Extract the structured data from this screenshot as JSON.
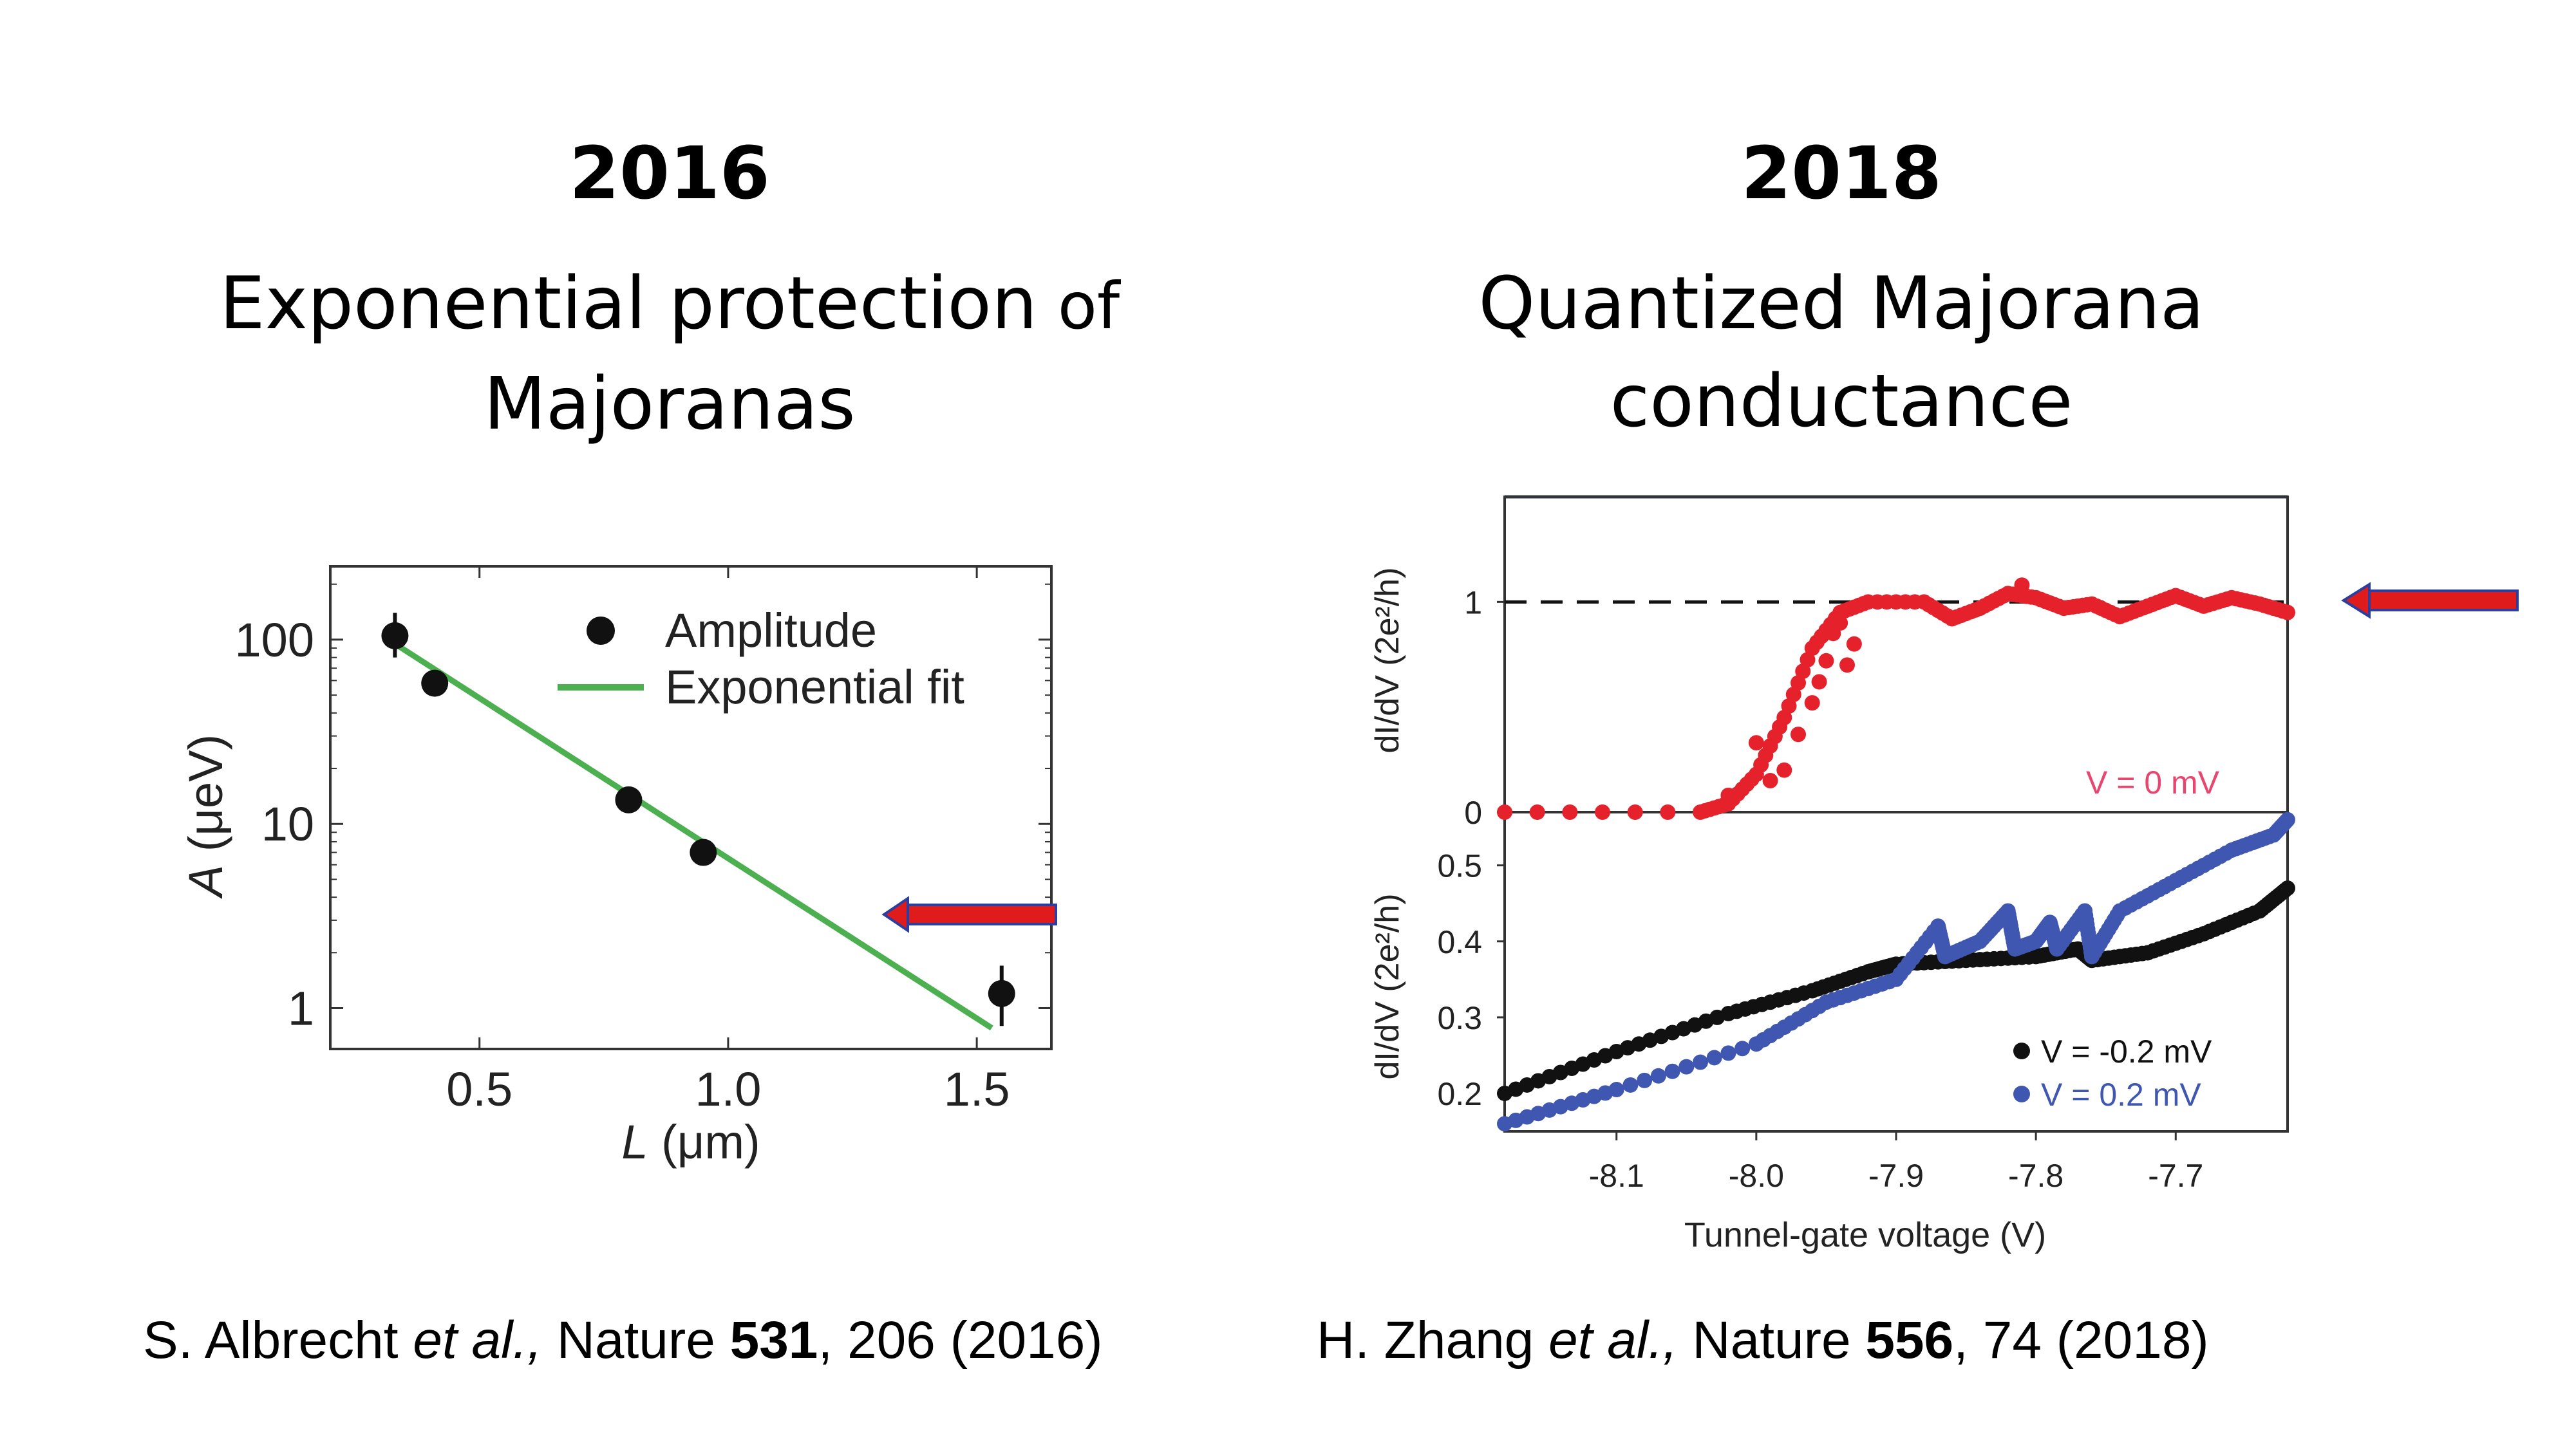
{
  "left": {
    "year": "2016",
    "subtitle_line1_main": "Exponential protection",
    "subtitle_line1_small": " of",
    "subtitle_line2": "Majoranas",
    "citation": {
      "authors": "S. Albrecht ",
      "etal": "et al.,",
      "journal": " Nature ",
      "volume": "531",
      "rest": ", 206 (2016)"
    }
  },
  "right": {
    "year": "2018",
    "subtitle_line1": "Quantized Majorana",
    "subtitle_line2": "conductance",
    "citation": {
      "authors": "H. Zhang ",
      "etal": "et al.,",
      "journal": " Nature ",
      "volume": "556",
      "rest": ", 74 (2018)"
    }
  },
  "colors": {
    "fit_line": "#4caf50",
    "marker_black": "#111111",
    "marker_red": "#e5222b",
    "marker_blue": "#3f57b0",
    "arrow_fill": "#e01b1b",
    "arrow_outline": "#2a3fa0",
    "v0_label": "#e8466e"
  },
  "chart_data": [
    {
      "type": "scatter",
      "xlabel_italic": "L",
      "xlabel_unit": "(μm)",
      "ylabel_italic": "A",
      "ylabel_unit": "(μeV)",
      "yscale": "log",
      "xlim": [
        0.2,
        1.65
      ],
      "ylim": [
        0.6,
        250
      ],
      "xticks": [
        "0.5",
        "1.0",
        "1.5"
      ],
      "yticks": [
        "1",
        "10",
        "100"
      ],
      "legend_position": "top-right",
      "series": [
        {
          "name": "Amplitude",
          "marker": "dot",
          "points": [
            {
              "x": 0.33,
              "y": 105,
              "err_low": 80,
              "err_high": 140
            },
            {
              "x": 0.41,
              "y": 58
            },
            {
              "x": 0.8,
              "y": 13.5
            },
            {
              "x": 0.95,
              "y": 7
            },
            {
              "x": 1.55,
              "y": 1.2,
              "err_low": 0.8,
              "err_high": 1.7
            }
          ]
        },
        {
          "name": "Exponential fit",
          "marker": "line",
          "points": [
            {
              "x": 0.33,
              "y": 95
            },
            {
              "x": 1.53,
              "y": 0.78
            }
          ]
        }
      ],
      "annotation": "arrow pointing at fit line near A ≈ 2.6"
    },
    {
      "type": "scatter",
      "panel": "top",
      "ylabel": "dI/dV (2e²/h)",
      "yticks": [
        "0",
        "1"
      ],
      "ylim": [
        0,
        1.5
      ],
      "xlim": [
        -8.18,
        -7.62
      ],
      "reference_line": {
        "y": 1,
        "style": "dashed"
      },
      "series": [
        {
          "name": "V = 0 mV",
          "trace": [
            [
              -8.18,
              0.0
            ],
            [
              -8.04,
              0.0
            ],
            [
              -8.02,
              0.04
            ],
            [
              -8.0,
              0.18
            ],
            [
              -7.98,
              0.45
            ],
            [
              -7.96,
              0.78
            ],
            [
              -7.94,
              0.95
            ],
            [
              -7.92,
              1.0
            ],
            [
              -7.88,
              1.0
            ],
            [
              -7.86,
              0.92
            ],
            [
              -7.84,
              0.97
            ],
            [
              -7.82,
              1.04
            ],
            [
              -7.8,
              1.02
            ],
            [
              -7.78,
              0.97
            ],
            [
              -7.76,
              0.99
            ],
            [
              -7.74,
              0.93
            ],
            [
              -7.72,
              0.98
            ],
            [
              -7.7,
              1.03
            ],
            [
              -7.68,
              0.98
            ],
            [
              -7.66,
              1.02
            ],
            [
              -7.64,
              0.99
            ],
            [
              -7.62,
              0.95
            ]
          ],
          "scatter": [
            [
              -8.02,
              0.08
            ],
            [
              -8.0,
              0.33
            ],
            [
              -7.99,
              0.15
            ],
            [
              -7.98,
              0.2
            ],
            [
              -7.97,
              0.37
            ],
            [
              -7.96,
              0.52
            ],
            [
              -7.955,
              0.62
            ],
            [
              -7.95,
              0.72
            ],
            [
              -7.945,
              0.85
            ],
            [
              -7.94,
              0.9
            ],
            [
              -7.935,
              0.7
            ],
            [
              -7.93,
              0.8
            ],
            [
              -7.81,
              1.08
            ]
          ]
        }
      ]
    },
    {
      "type": "scatter",
      "panel": "bottom",
      "ylabel": "dI/dV (2e²/h)",
      "xlabel": "Tunnel-gate voltage (V)",
      "xlim": [
        -8.18,
        -7.62
      ],
      "ylim": [
        0.15,
        0.57
      ],
      "xticks": [
        "-8.1",
        "-8.0",
        "-7.9",
        "-7.8",
        "-7.7"
      ],
      "yticks": [
        "0.2",
        "0.3",
        "0.4",
        "0.5"
      ],
      "legend_position": "bottom-right",
      "series": [
        {
          "name": "V = -0.2 mV",
          "trace": [
            [
              -8.18,
              0.2
            ],
            [
              -8.1,
              0.255
            ],
            [
              -8.02,
              0.305
            ],
            [
              -7.96,
              0.335
            ],
            [
              -7.92,
              0.36
            ],
            [
              -7.9,
              0.37
            ],
            [
              -7.85,
              0.375
            ],
            [
              -7.8,
              0.38
            ],
            [
              -7.77,
              0.39
            ],
            [
              -7.76,
              0.375
            ],
            [
              -7.72,
              0.385
            ],
            [
              -7.68,
              0.41
            ],
            [
              -7.64,
              0.44
            ],
            [
              -7.62,
              0.47
            ]
          ]
        },
        {
          "name": "V = 0.2 mV",
          "trace": [
            [
              -8.18,
              0.16
            ],
            [
              -8.1,
              0.205
            ],
            [
              -8.0,
              0.265
            ],
            [
              -7.95,
              0.32
            ],
            [
              -7.9,
              0.35
            ],
            [
              -7.87,
              0.42
            ],
            [
              -7.865,
              0.38
            ],
            [
              -7.84,
              0.4
            ],
            [
              -7.82,
              0.44
            ],
            [
              -7.815,
              0.39
            ],
            [
              -7.8,
              0.4
            ],
            [
              -7.79,
              0.425
            ],
            [
              -7.785,
              0.39
            ],
            [
              -7.765,
              0.44
            ],
            [
              -7.76,
              0.38
            ],
            [
              -7.74,
              0.44
            ],
            [
              -7.7,
              0.48
            ],
            [
              -7.66,
              0.52
            ],
            [
              -7.63,
              0.54
            ],
            [
              -7.62,
              0.56
            ]
          ]
        }
      ],
      "annotation": "arrow pointing at quantized plateau y = 1"
    }
  ]
}
